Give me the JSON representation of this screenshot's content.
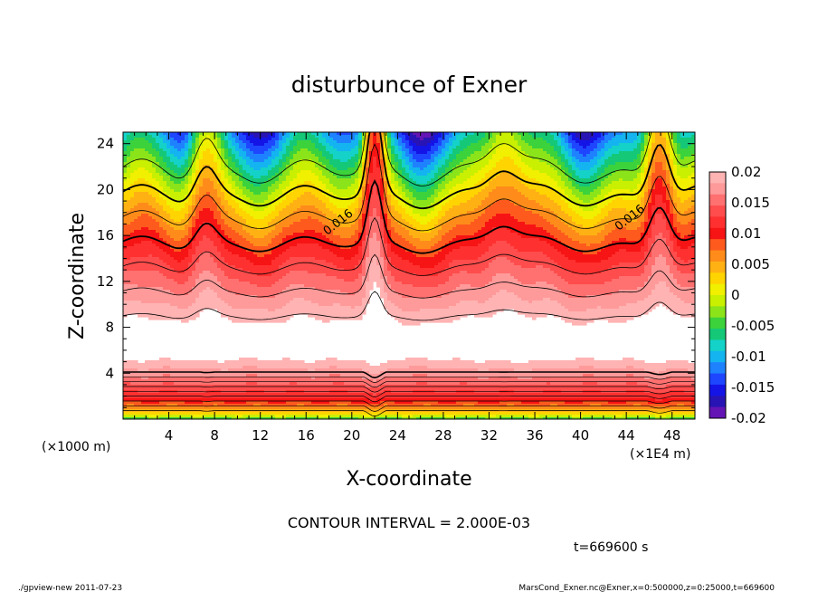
{
  "chart_data": {
    "type": "heatmap",
    "title": "disturbunce of Exner",
    "xlabel": "X-coordinate",
    "ylabel": "Z-coordinate",
    "x_unit": "(×1E4 m)",
    "y_unit": "(×1000 m)",
    "xlim": [
      0,
      50
    ],
    "ylim": [
      0,
      25
    ],
    "x_ticks": [
      4,
      8,
      12,
      16,
      20,
      24,
      28,
      32,
      36,
      40,
      44,
      48
    ],
    "y_ticks": [
      4,
      8,
      12,
      16,
      20,
      24
    ],
    "contour_interval_text": "CONTOUR INTERVAL = 2.000E-03",
    "time_text": "t=669600 s",
    "contour_labels": [
      {
        "text": "0.016",
        "x": 19.0,
        "z": 16.9
      },
      {
        "text": "0.016",
        "x": 44.5,
        "z": 17.3
      }
    ],
    "colorbar": {
      "levels": [
        0.02,
        0.015,
        0.01,
        0.005,
        0,
        -0.005,
        -0.01,
        -0.015,
        -0.02
      ],
      "labels": [
        "0.02",
        "0.015",
        "0.01",
        "0.005",
        "0",
        "-0.005",
        "-0.01",
        "-0.015",
        "-0.02"
      ],
      "colors": [
        "#ffb3b3",
        "#ff9a9a",
        "#ff7070",
        "#ff4c4c",
        "#ff3030",
        "#f71414",
        "#ff5a1e",
        "#ff8c1a",
        "#ffb114",
        "#ffd400",
        "#f0f000",
        "#c8f000",
        "#8be41a",
        "#3cd23c",
        "#14c878",
        "#14d2c8",
        "#14b4f0",
        "#1e82ff",
        "#1e46ff",
        "#1414e6",
        "#2814b4",
        "#6414b4"
      ]
    },
    "white_threshold": 0.02,
    "field_params": {
      "core_center_z": 6.5,
      "peaks": [
        {
          "x": 7.2,
          "amp": 1.6,
          "width": 1.3
        },
        {
          "x": 22.0,
          "amp": 4.2,
          "width": 0.8
        },
        {
          "x": 33.2,
          "amp": 1.4,
          "width": 1.8
        },
        {
          "x": 46.9,
          "amp": 3.0,
          "width": 1.2
        }
      ]
    }
  },
  "footer": {
    "left": "./gpview-new   2011-07-23",
    "right": "MarsCond_Exner.nc@Exner,x=0:500000,z=0:25000,t=669600"
  }
}
